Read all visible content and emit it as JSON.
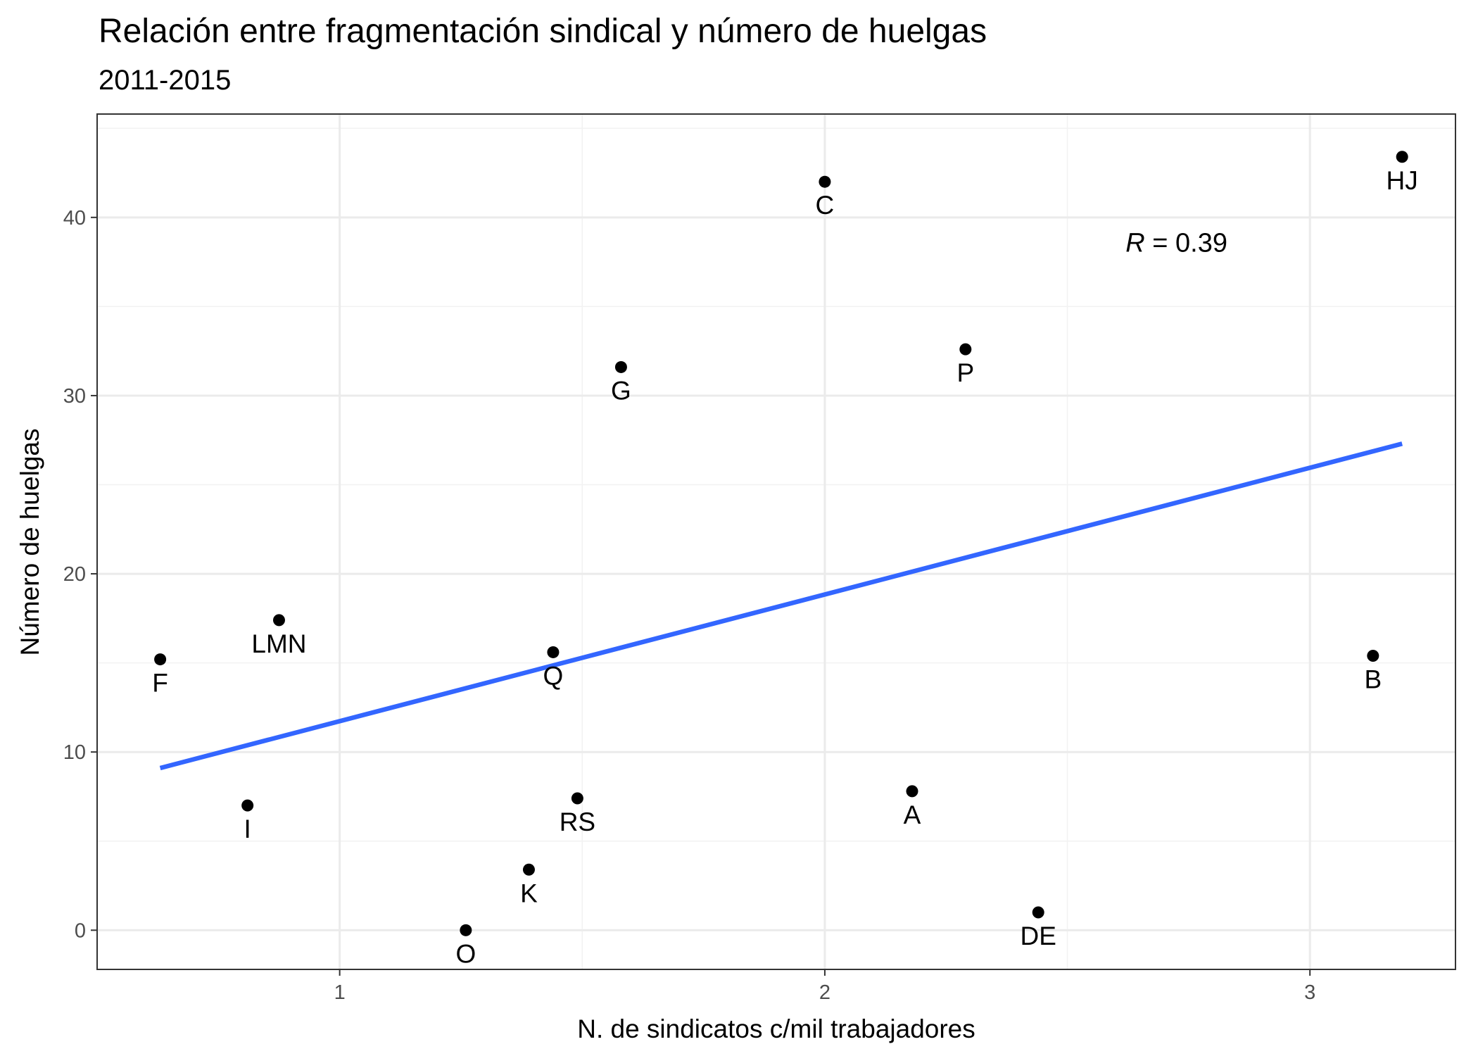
{
  "chart_data": {
    "type": "scatter",
    "title": "Relación entre fragmentación sindical y número de huelgas",
    "subtitle": "2011-2015",
    "xlabel": "N. de sindicatos c/mil trabajadores",
    "ylabel": "Número de huelgas",
    "xlim": [
      0.5,
      3.3
    ],
    "ylim": [
      -2.2,
      45.8
    ],
    "x_ticks": [
      1,
      2,
      3
    ],
    "y_ticks": [
      0,
      10,
      20,
      30,
      40
    ],
    "grid": true,
    "points": [
      {
        "label": "A",
        "x": 2.18,
        "y": 7.8
      },
      {
        "label": "B",
        "x": 3.13,
        "y": 15.4
      },
      {
        "label": "C",
        "x": 2.0,
        "y": 42.0
      },
      {
        "label": "DE",
        "x": 2.44,
        "y": 1.0
      },
      {
        "label": "F",
        "x": 0.63,
        "y": 15.2
      },
      {
        "label": "G",
        "x": 1.58,
        "y": 31.6
      },
      {
        "label": "HJ",
        "x": 3.19,
        "y": 43.4
      },
      {
        "label": "I",
        "x": 0.81,
        "y": 7.0
      },
      {
        "label": "K",
        "x": 1.39,
        "y": 3.4
      },
      {
        "label": "LMN",
        "x": 0.875,
        "y": 17.4
      },
      {
        "label": "O",
        "x": 1.26,
        "y": 0.0
      },
      {
        "label": "P",
        "x": 2.29,
        "y": 32.6
      },
      {
        "label": "Q",
        "x": 1.44,
        "y": 15.6
      },
      {
        "label": "RS",
        "x": 1.49,
        "y": 7.4
      }
    ],
    "trend_line": {
      "x": [
        0.63,
        3.19
      ],
      "y": [
        9.1,
        27.3
      ],
      "color": "#3366ff"
    },
    "annotation": {
      "r_symbol": "R",
      "text": " = 0.39",
      "x": 2.62,
      "y": 38.6
    }
  }
}
